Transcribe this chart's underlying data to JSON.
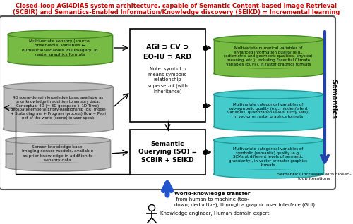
{
  "title_line1": "Closed-loop AGI4DIAS system architecture, capable of Semantic Content-based Image Retrieval",
  "title_line2": "(SCBIR) and Semantics-Enabled Information/Knowledge discovery (SEIKD) = Incremental learning",
  "title_color": "#CC0000",
  "bg_color": "#FFFFFF",
  "outer_box_color": "#555555",
  "center_box_text": "AGI ⊃ CV ⊃\nEO-IU ⊃ ARD",
  "center_box_note": "Note: symbol ⊃\nmeans symbolic\nrelationship\nsuperset-of (with\ninheritance)",
  "sq_box_text": "Semantic\nQuerying (SQ) =\nSCBIR + SEIKD",
  "green_ellipse1_text": "Multivariate sensory (source,\nobservable) variables ←\nnumerical variables, EO imagery, in\nraster graphics formats",
  "gray_ellipse1_text": "4D scene-domain knowledge base, available as\nprior knowledge in addition to sensory data.\nConceptual 4D (= 3D geospace + 1D Time)\ngeospatiotemporal Entity-Relationship (ER) model\n+ State diagram + Program (process) flow = Petri\nnet of the world (scene) in user-speak",
  "gray_ellipse2_text": "Sensor knowledge base.\nImaging sensor models, available\nas prior knowledge in addition to\nsensory data.",
  "green_ellipse2_text": "Multivariate numerical variables of\nenhanced information quality (e.g.,\nradiometric and geometric qualities, physical\nmeaning, etc.), including Essential Climate\nVariables (ECVs), in raster graphics formats",
  "cyan_ellipse1_text": "Multivariate categorical variables of\nsub-symbolic quality (e.g., hidden/latent\nvariables, quantization levels, fuzzy sets),\nin vector or raster graphics formats",
  "cyan_ellipse2_text": "Multivariate categorical variables of\nsymbolic (semantic) quality (e.g.,\nSCMs at different levels of semantic\ngranularity), in vector or raster graphics\nformats",
  "semantics_label": "Semantics",
  "semantics_arrow_color": "#2244AA",
  "semantics_text": "Semantics increases with closed-\nloop iterations",
  "world_knowledge_bold": "World-knowledge transfer",
  "world_knowledge_rest": " from human to machine (top-\ndown, deductive), through a graphic user interface (GUI)",
  "knowledge_engineer_text": "Knowledge engineer, Human domain expert",
  "green_color": "#77BB44",
  "green_edge": "#448822",
  "gray_color": "#BBBBBB",
  "gray_edge": "#888888",
  "cyan_color": "#44CCCC",
  "cyan_edge": "#229999",
  "arrow_color": "#000000",
  "blue_arrow_color": "#2255CC"
}
